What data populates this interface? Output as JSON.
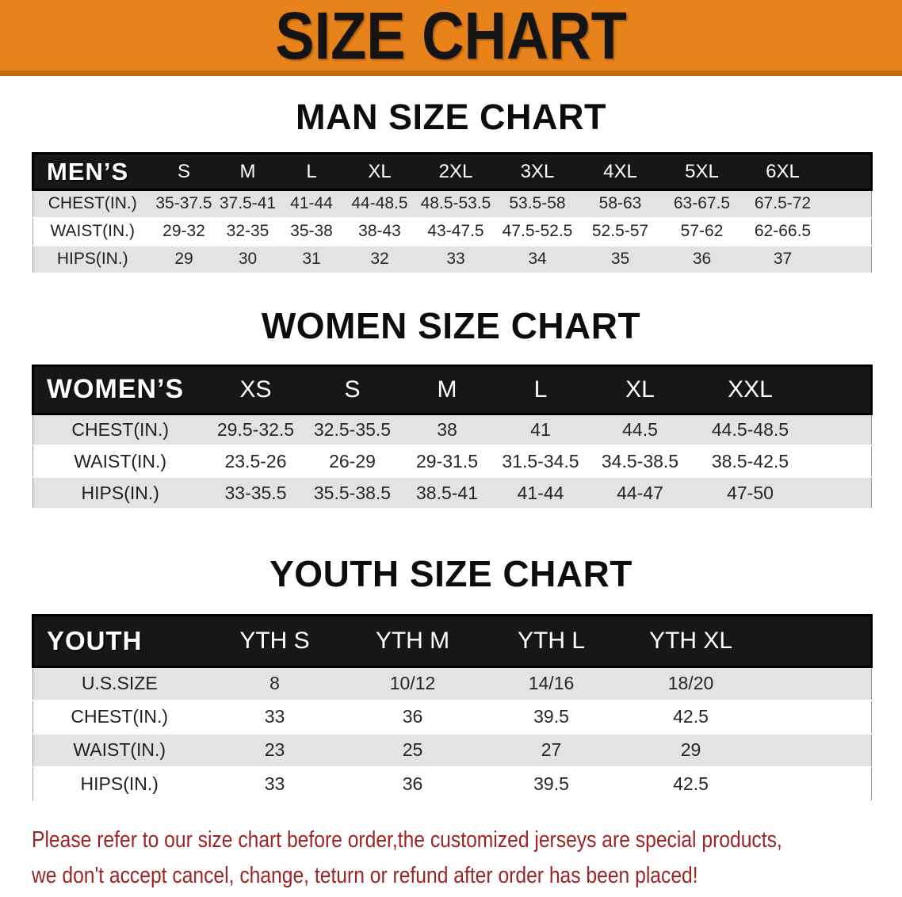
{
  "banner": {
    "title": "SIZE CHART"
  },
  "colors": {
    "banner_bg": "#e8821a",
    "banner_edge": "#c2690f",
    "header_bar_bg": "#171717",
    "stripe_row_bg": "#e3e3e1",
    "disclaimer_text": "#9e2424"
  },
  "sections": [
    {
      "heading": "MAN SIZE CHART",
      "corner_label": "MEN’S",
      "sizes": [
        "S",
        "M",
        "L",
        "XL",
        "2XL",
        "3XL",
        "4XL",
        "5XL",
        "6XL"
      ],
      "rows": [
        {
          "label": "CHEST(IN.)",
          "values": [
            "35-37.5",
            "37.5-41",
            "41-44",
            "44-48.5",
            "48.5-53.5",
            "53.5-58",
            "58-63",
            "63-67.5",
            "67.5-72"
          ]
        },
        {
          "label": "WAIST(IN.)",
          "values": [
            "29-32",
            "32-35",
            "35-38",
            "38-43",
            "43-47.5",
            "47.5-52.5",
            "52.5-57",
            "57-62",
            "62-66.5"
          ]
        },
        {
          "label": "HIPS(IN.)",
          "values": [
            "29",
            "30",
            "31",
            "32",
            "33",
            "34",
            "35",
            "36",
            "37"
          ]
        }
      ]
    },
    {
      "heading": "WOMEN SIZE CHART",
      "corner_label": "WOMEN’S",
      "sizes": [
        "XS",
        "S",
        "M",
        "L",
        "XL",
        "XXL"
      ],
      "rows": [
        {
          "label": "CHEST(IN.)",
          "values": [
            "29.5-32.5",
            "32.5-35.5",
            "38",
            "41",
            "44.5",
            "44.5-48.5"
          ]
        },
        {
          "label": "WAIST(IN.)",
          "values": [
            "23.5-26",
            "26-29",
            "29-31.5",
            "31.5-34.5",
            "34.5-38.5",
            "38.5-42.5"
          ]
        },
        {
          "label": "HIPS(IN.)",
          "values": [
            "33-35.5",
            "35.5-38.5",
            "38.5-41",
            "41-44",
            "44-47",
            "47-50"
          ]
        }
      ]
    },
    {
      "heading": "YOUTH SIZE CHART",
      "corner_label": "YOUTH",
      "sizes": [
        "YTH S",
        "YTH M",
        "YTH L",
        "YTH XL"
      ],
      "rows": [
        {
          "label": "U.S.SIZE",
          "values": [
            "8",
            "10/12",
            "14/16",
            "18/20"
          ]
        },
        {
          "label": "CHEST(IN.)",
          "values": [
            "33",
            "36",
            "39.5",
            "42.5"
          ]
        },
        {
          "label": "WAIST(IN.)",
          "values": [
            "23",
            "25",
            "27",
            "29"
          ]
        },
        {
          "label": "HIPS(IN.)",
          "values": [
            "33",
            "36",
            "39.5",
            "42.5"
          ]
        }
      ]
    }
  ],
  "disclaimer": {
    "line1": "Please refer to our size chart before order,the customized jerseys are special products,",
    "line2": "we don't accept cancel, change, teturn or refund after order has been placed!"
  }
}
